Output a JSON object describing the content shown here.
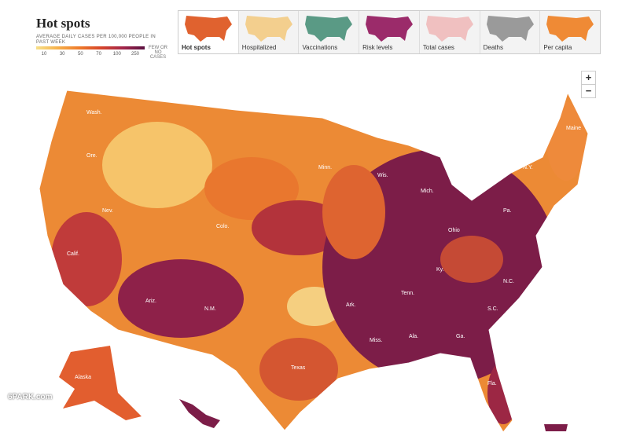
{
  "header": {
    "title": "Hot spots",
    "legend": {
      "caption": "AVERAGE DAILY CASES PER 100,000 PEOPLE IN PAST WEEK",
      "ticks": [
        10,
        30,
        50,
        70,
        100,
        250
      ],
      "no_cases": "FEW OR NO CASES"
    }
  },
  "tabs": [
    "Hot spots",
    "Hospitalized",
    "Vaccinations",
    "Risk levels",
    "Total cases",
    "Deaths",
    "Per capita"
  ],
  "zoom": {
    "in": "+",
    "out": "−"
  },
  "map": {
    "labels": [
      "Wash.",
      "Ore.",
      "Calif.",
      "Nev.",
      "Ariz.",
      "N.M.",
      "Colo.",
      "Texas",
      "Minn.",
      "Wis.",
      "Mich.",
      "N.Y.",
      "Maine",
      "Pa.",
      "Ohio",
      "Ky.",
      "Tenn.",
      "Miss.",
      "Ala.",
      "Ga.",
      "S.C.",
      "N.C.",
      "Fla.",
      "Ark.",
      "Alaska"
    ]
  },
  "watermark": "6PARK.com"
}
